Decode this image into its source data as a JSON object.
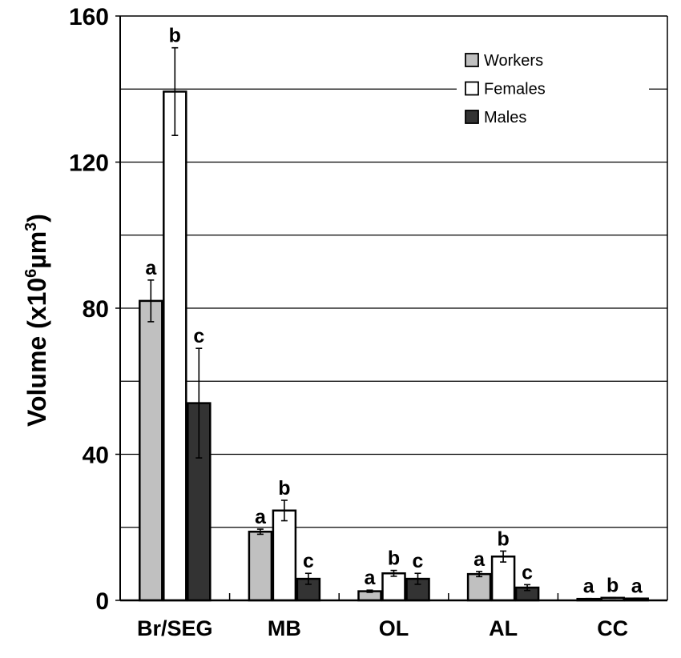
{
  "chart_data": {
    "type": "bar",
    "title": "",
    "xlabel": "",
    "ylabel": "Volume (x10⁶µm³)",
    "ylabel_parts": {
      "main": "Volume (x10",
      "exp1": "6",
      "unit": "µm",
      "exp2": "3",
      "close": ")"
    },
    "ylim": [
      0,
      160
    ],
    "yticks": [
      0,
      40,
      80,
      120,
      160
    ],
    "grid": true,
    "legend_position": "top-right",
    "categories": [
      "Br/SEG",
      "MB",
      "OL",
      "AL",
      "CC"
    ],
    "series": [
      {
        "name": "Workers",
        "color": "#c0c0c0",
        "values": [
          82,
          18.8,
          2.5,
          7.2,
          0.4
        ],
        "errors": [
          5.7,
          0.7,
          0.3,
          0.7,
          0.1
        ],
        "letters": [
          "a",
          "a",
          "a",
          "a",
          "a"
        ]
      },
      {
        "name": "Females",
        "color": "#ffffff",
        "values": [
          139.3,
          24.6,
          7.4,
          12.0,
          0.7
        ],
        "errors": [
          12,
          2.8,
          0.8,
          1.5,
          0.1
        ],
        "letters": [
          "b",
          "b",
          "b",
          "b",
          "b"
        ]
      },
      {
        "name": "Males",
        "color": "#333333",
        "values": [
          54,
          5.9,
          5.9,
          3.5,
          0.5
        ],
        "errors": [
          15,
          1.5,
          1.5,
          0.8,
          0.1
        ],
        "letters": [
          "c",
          "c",
          "c",
          "c",
          "a"
        ]
      }
    ]
  }
}
